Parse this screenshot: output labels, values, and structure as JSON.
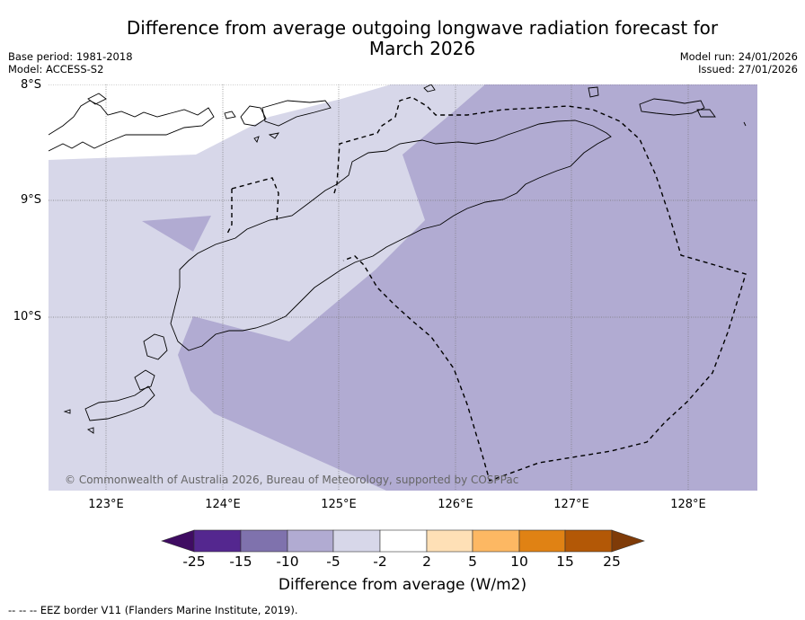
{
  "title": "Difference from average outgoing longwave radiation forecast for March 2026",
  "title_line1": "Difference from average outgoing longwave radiation forecast for",
  "title_line2": "March 2026",
  "meta_left": [
    "Base period: 1981-2018",
    "Model: ACCESS-S2"
  ],
  "meta_right": [
    "Model run: 24/01/2026",
    "Issued: 27/01/2026"
  ],
  "map": {
    "lat_labels": [
      "8°S",
      "9°S",
      "10°S"
    ],
    "lon_labels": [
      "123°E",
      "124°E",
      "125°E",
      "126°E",
      "127°E",
      "128°E"
    ],
    "copyright": "© Commonwealth of Australia 2026, Bureau of Meteorology, supported by COSPPac",
    "fill_colors": {
      "minus5_to_minus2": "#d7d7e9",
      "minus10_to_minus5": "#b1abd2",
      "ocean_land_bg": "#d7d7e9"
    }
  },
  "colorbar": {
    "ticks": [
      "-25",
      "-15",
      "-10",
      "-5",
      "-2",
      "2",
      "5",
      "10",
      "15",
      "25"
    ],
    "colors": [
      "#3f0c62",
      "#54278f",
      "#7f72ad",
      "#b1abd2",
      "#d7d7e9",
      "#ffffff",
      "#fee0b6",
      "#fdb863",
      "#e08214",
      "#b35806",
      "#7f3b08"
    ],
    "label": "Difference from average (W/m2)"
  },
  "footer": "--  --  -- EEZ border V11 (Flanders Marine Institute, 2019).",
  "colors": {
    "grid": "#777777",
    "border": "#000000"
  }
}
